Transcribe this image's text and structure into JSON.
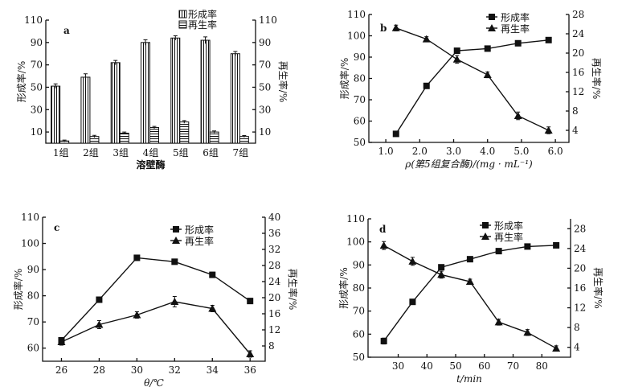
{
  "chart_data": [
    {
      "type": "bar",
      "panel_label": "a",
      "xlabel": "溶壁酶",
      "ylabel_left": "形成率/%",
      "ylabel_right": "再生率/%",
      "categories": [
        "1组",
        "2组",
        "3组",
        "4组",
        "5组",
        "6组",
        "7组"
      ],
      "ylim_left": [
        0,
        110
      ],
      "yticks_left": [
        10,
        30,
        50,
        70,
        90,
        110
      ],
      "ylim_right": [
        0,
        110
      ],
      "yticks_right": [
        10,
        30,
        50,
        70,
        90,
        110
      ],
      "legend_position": "top-right",
      "series": [
        {
          "name": "形成率",
          "axis": "left",
          "pattern": "vertical-stripes",
          "values": [
            51,
            59,
            72,
            90,
            94,
            92,
            80
          ],
          "error": [
            2,
            3,
            2,
            2.5,
            2,
            3,
            2
          ]
        },
        {
          "name": "再生率",
          "axis": "right",
          "pattern": "horizontal-stripes",
          "values": [
            2,
            6,
            9,
            14,
            19,
            10,
            6
          ],
          "error": [
            0.8,
            1,
            1,
            1,
            1.2,
            1,
            0.8
          ]
        }
      ]
    },
    {
      "type": "line",
      "panel_label": "b",
      "xlabel": "ρ(第5组复合酶)/(mg · mL⁻¹)",
      "ylabel_left": "形成率/%",
      "ylabel_right": "再生率/%",
      "xlim": [
        0.5,
        6.4
      ],
      "xticks": [
        "1.0",
        "2.0",
        "3.0",
        "4.0",
        "5.0",
        "6.0"
      ],
      "ylim_left": [
        50,
        110
      ],
      "yticks_left": [
        50,
        60,
        70,
        80,
        90,
        100,
        110
      ],
      "ylim_right": [
        1.5,
        28
      ],
      "yticks_right": [
        4,
        8,
        12,
        16,
        20,
        24,
        28
      ],
      "legend_position": "top-right",
      "x": [
        1.3,
        2.2,
        3.1,
        4.0,
        4.9,
        5.8
      ],
      "series": [
        {
          "name": "形成率",
          "axis": "left",
          "marker": "square",
          "values": [
            54,
            76.5,
            93,
            94,
            96.5,
            98
          ],
          "error": [
            1,
            1,
            1,
            1.2,
            1,
            1
          ]
        },
        {
          "name": "再生率",
          "axis": "right",
          "marker": "triangle",
          "values": [
            25.2,
            22.9,
            18.7,
            15.5,
            7.0,
            4.0
          ],
          "error": [
            0.6,
            0.5,
            0.8,
            0.6,
            0.8,
            0.7
          ]
        }
      ]
    },
    {
      "type": "line",
      "panel_label": "c",
      "xlabel": "θ/℃",
      "ylabel_left": "形成率/%",
      "ylabel_right": "再生率/%",
      "xlim": [
        25,
        36.8
      ],
      "xticks": [
        "26",
        "28",
        "30",
        "32",
        "34",
        "36"
      ],
      "ylim_left": [
        55,
        110
      ],
      "yticks_left": [
        60,
        70,
        80,
        90,
        100,
        110
      ],
      "ylim_right": [
        4.2,
        40
      ],
      "yticks_right": [
        8,
        12,
        16,
        20,
        24,
        28,
        32,
        36,
        40
      ],
      "legend_position": "top-right",
      "x": [
        26,
        28,
        30,
        32,
        34,
        36
      ],
      "series": [
        {
          "name": "形成率",
          "axis": "left",
          "marker": "square",
          "values": [
            63,
            78.5,
            94.5,
            93,
            88,
            78
          ],
          "error": [
            1,
            1,
            0.5,
            0.5,
            1,
            1
          ]
        },
        {
          "name": "再生率",
          "axis": "right",
          "marker": "triangle",
          "values": [
            9.0,
            13.3,
            15.7,
            19.0,
            17.3,
            6.0
          ],
          "error": [
            0.8,
            1,
            0.8,
            1.3,
            0.8,
            0.8
          ]
        }
      ]
    },
    {
      "type": "line",
      "panel_label": "d",
      "xlabel": "t/min",
      "ylabel_left": "形成率/%",
      "ylabel_right": "再生率/%",
      "xlim": [
        19.5,
        90
      ],
      "xticks": [
        "30",
        "40",
        "50",
        "60",
        "70",
        "80"
      ],
      "ylim_left": [
        50,
        110
      ],
      "yticks_left": [
        50,
        60,
        70,
        80,
        90,
        100,
        110
      ],
      "ylim_right": [
        2,
        30
      ],
      "yticks_right": [
        4,
        8,
        12,
        16,
        20,
        24,
        28
      ],
      "legend_position": "top-right",
      "x": [
        25,
        35,
        45,
        55,
        65,
        75,
        85
      ],
      "series": [
        {
          "name": "形成率",
          "axis": "left",
          "marker": "square",
          "values": [
            57,
            74,
            89,
            92.5,
            96,
            98,
            98.5
          ],
          "error": [
            1.3,
            1,
            0.5,
            1,
            1,
            1,
            1
          ]
        },
        {
          "name": "再生率",
          "axis": "right",
          "marker": "triangle",
          "values": [
            24.6,
            21.4,
            18.7,
            17.3,
            9.1,
            7.0,
            3.8
          ],
          "error": [
            0.8,
            0.8,
            0.7,
            0.5,
            0.6,
            0.6,
            0.5
          ]
        }
      ]
    }
  ]
}
